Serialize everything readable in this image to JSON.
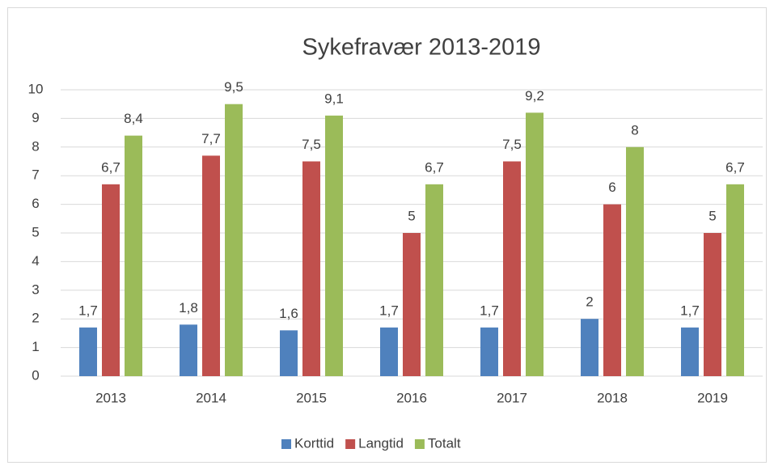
{
  "chart_data": {
    "type": "bar",
    "title": "Sykefravær 2013-2019",
    "categories": [
      "2013",
      "2014",
      "2015",
      "2016",
      "2017",
      "2018",
      "2019"
    ],
    "series": [
      {
        "name": "Korttid",
        "color": "#4f81bd",
        "values": [
          1.7,
          1.8,
          1.6,
          1.7,
          1.7,
          2,
          1.7
        ],
        "value_labels": [
          "1,7",
          "1,8",
          "1,6",
          "1,7",
          "1,7",
          "2",
          "1,7"
        ]
      },
      {
        "name": "Langtid",
        "color": "#c0504d",
        "values": [
          6.7,
          7.7,
          7.5,
          5,
          7.5,
          6,
          5
        ],
        "value_labels": [
          "6,7",
          "7,7",
          "7,5",
          "5",
          "7,5",
          "6",
          "5"
        ]
      },
      {
        "name": "Totalt",
        "color": "#9bbb59",
        "values": [
          8.4,
          9.5,
          9.1,
          6.7,
          9.2,
          8,
          6.7
        ],
        "value_labels": [
          "8,4",
          "9,5",
          "9,1",
          "6,7",
          "9,2",
          "8",
          "6,7"
        ]
      }
    ],
    "ylim": [
      0,
      10
    ],
    "yticks": [
      0,
      1,
      2,
      3,
      4,
      5,
      6,
      7,
      8,
      9,
      10
    ],
    "grid": true,
    "legend": "bottom"
  }
}
